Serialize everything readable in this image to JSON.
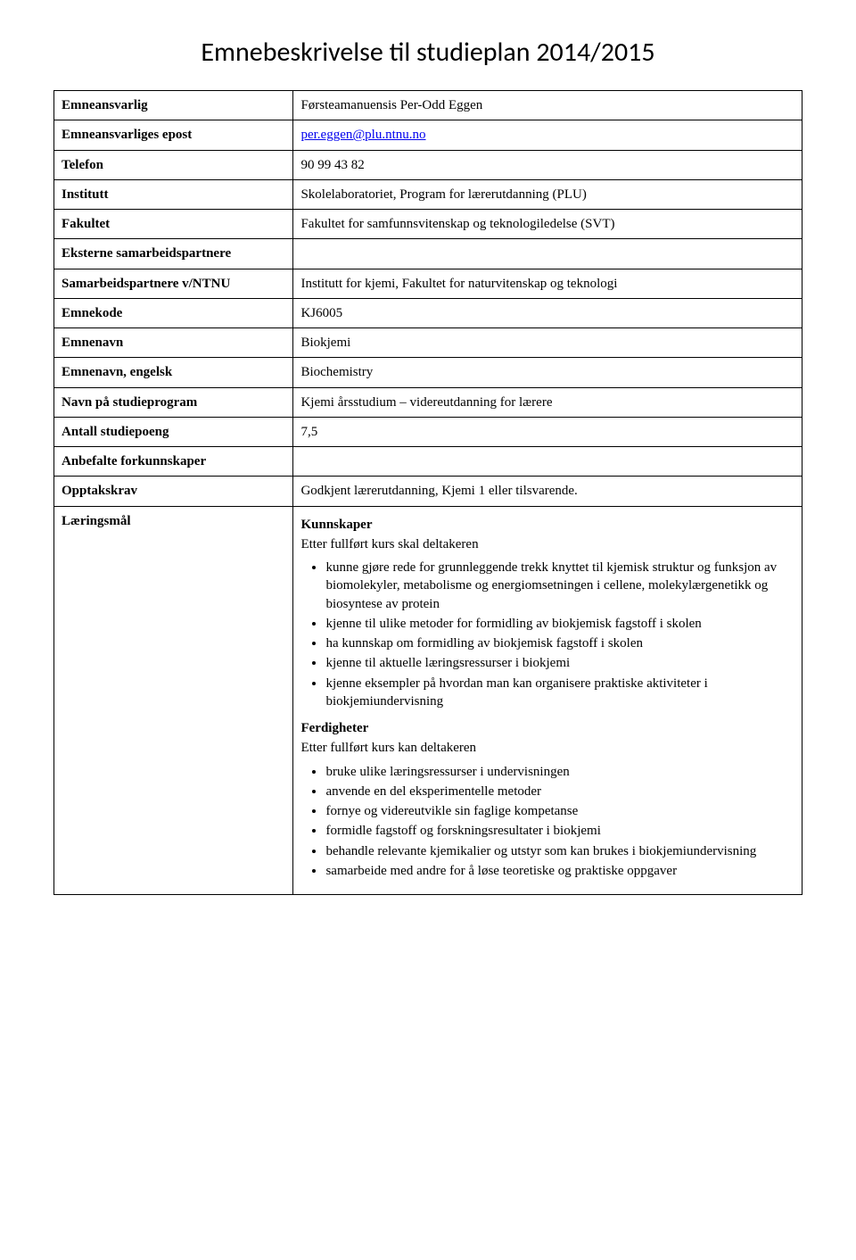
{
  "page_title": "Emnebeskrivelse til studieplan 2014/2015",
  "rows": {
    "emneansvarlig": {
      "label": "Emneansvarlig",
      "value": "Førsteamanuensis Per-Odd Eggen"
    },
    "epost": {
      "label": "Emneansvarliges epost",
      "value": "per.eggen@plu.ntnu.no"
    },
    "telefon": {
      "label": "Telefon",
      "value": "90 99 43 82"
    },
    "institutt": {
      "label": "Institutt",
      "value": "Skolelaboratoriet, Program for lærerutdanning (PLU)"
    },
    "fakultet": {
      "label": "Fakultet",
      "value": "Fakultet for samfunnsvitenskap og teknologiledelse (SVT)"
    },
    "eksterne": {
      "label": "Eksterne samarbeidspartnere",
      "value": ""
    },
    "samarbeid_ntnu": {
      "label": "Samarbeidspartnere v/NTNU",
      "value": "Institutt for kjemi, Fakultet for naturvitenskap og teknologi"
    },
    "emnekode": {
      "label": "Emnekode",
      "value": "KJ6005"
    },
    "emnenavn": {
      "label": "Emnenavn",
      "value": "Biokjemi"
    },
    "emnenavn_en": {
      "label": "Emnenavn, engelsk",
      "value": "Biochemistry"
    },
    "studieprogram": {
      "label": "Navn på studieprogram",
      "value": "Kjemi årsstudium – videreutdanning for lærere"
    },
    "studiepoeng": {
      "label": "Antall studiepoeng",
      "value": "7,5"
    },
    "forkunnskaper": {
      "label": "Anbefalte forkunnskaper",
      "value": ""
    },
    "opptakskrav": {
      "label": "Opptakskrav",
      "value": "Godkjent lærerutdanning, Kjemi 1 eller tilsvarende."
    },
    "laeringsmal": {
      "label": "Læringsmål"
    }
  },
  "laeringsmal": {
    "kunnskaper": {
      "head": "Kunnskaper",
      "sub": "Etter fullført kurs skal deltakeren",
      "items": [
        "kunne gjøre rede for grunnleggende trekk knyttet til kjemisk struktur og funksjon av biomolekyler, metabolisme og energiomsetningen i cellene, molekylærgenetikk og biosyntese av protein",
        "kjenne til ulike metoder for formidling av biokjemisk fagstoff i skolen",
        "ha kunnskap om formidling av biokjemisk fagstoff i skolen",
        "kjenne til aktuelle læringsressurser i biokjemi",
        "kjenne eksempler på hvordan man kan organisere praktiske aktiviteter i biokjemiundervisning"
      ]
    },
    "ferdigheter": {
      "head": "Ferdigheter",
      "sub": "Etter fullført kurs kan deltakeren",
      "items": [
        "bruke ulike læringsressurser i undervisningen",
        "anvende en del eksperimentelle metoder",
        "fornye og videreutvikle sin faglige kompetanse",
        "formidle fagstoff og forskningsresultater i biokjemi",
        "behandle relevante kjemikalier og utstyr som kan brukes i biokjemiundervisning",
        "samarbeide med andre for å løse teoretiske og praktiske oppgaver"
      ]
    }
  }
}
